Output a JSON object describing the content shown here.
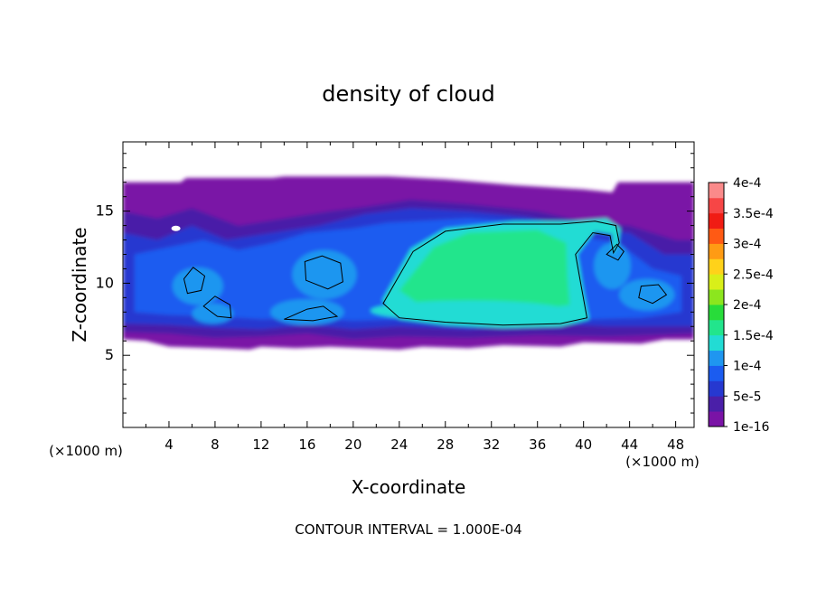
{
  "chart_data": {
    "type": "heatmap",
    "title": "density of cloud",
    "xlabel": "X-coordinate",
    "ylabel": "Z-coordinate",
    "x_unit": "(×1000 m)",
    "y_unit": "(×1000 m)",
    "footer": "CONTOUR INTERVAL = 1.000E-04",
    "xlim": [
      0,
      49.6
    ],
    "ylim": [
      0,
      19.8
    ],
    "x_ticks": [
      4,
      8,
      12,
      16,
      20,
      24,
      28,
      32,
      36,
      40,
      44,
      48
    ],
    "x_tick_labels": [
      "4",
      "8",
      "12",
      "16",
      "20",
      "24",
      "28",
      "32",
      "36",
      "40",
      "44",
      "48"
    ],
    "y_ticks": [
      5,
      10,
      15
    ],
    "y_tick_labels": [
      "5",
      "10",
      "15"
    ],
    "colorbar": {
      "levels": [
        "1e-16",
        "5e-5",
        "1e-4",
        "1.5e-4",
        "2e-4",
        "2.5e-4",
        "3e-4",
        "3.5e-4",
        "4e-4"
      ],
      "colors": [
        "#7a13a6",
        "#4a1fa8",
        "#2638d0",
        "#1b5cf0",
        "#1f96f0",
        "#22dcd4",
        "#22e58c",
        "#28dc3a",
        "#8ce61e",
        "#d9ef19",
        "#ffd21a",
        "#ff9b14",
        "#ff5a14",
        "#f01c14",
        "#f64646",
        "#fa8a8a"
      ]
    },
    "contour_level": "1e-4",
    "contour_line_color": "#000000",
    "cloud_layer_z": [
      5.5,
      17.2
    ],
    "regions": [
      {
        "level": "1e-16",
        "x": [
          0,
          49.6
        ],
        "z": [
          6,
          17
        ]
      },
      {
        "level": "5e-5",
        "x": [
          0,
          49.6
        ],
        "z": [
          6.5,
          15
        ]
      },
      {
        "level": "1e-4",
        "x": [
          22.5,
          43
        ],
        "z": [
          7,
          14
        ]
      },
      {
        "level": "1.5e-4",
        "x": [
          23.5,
          39.5
        ],
        "z": [
          7.5,
          13.5
        ]
      },
      {
        "level": "2e-4",
        "x": [
          25,
          38
        ],
        "z": [
          9,
          13.2
        ]
      }
    ]
  }
}
